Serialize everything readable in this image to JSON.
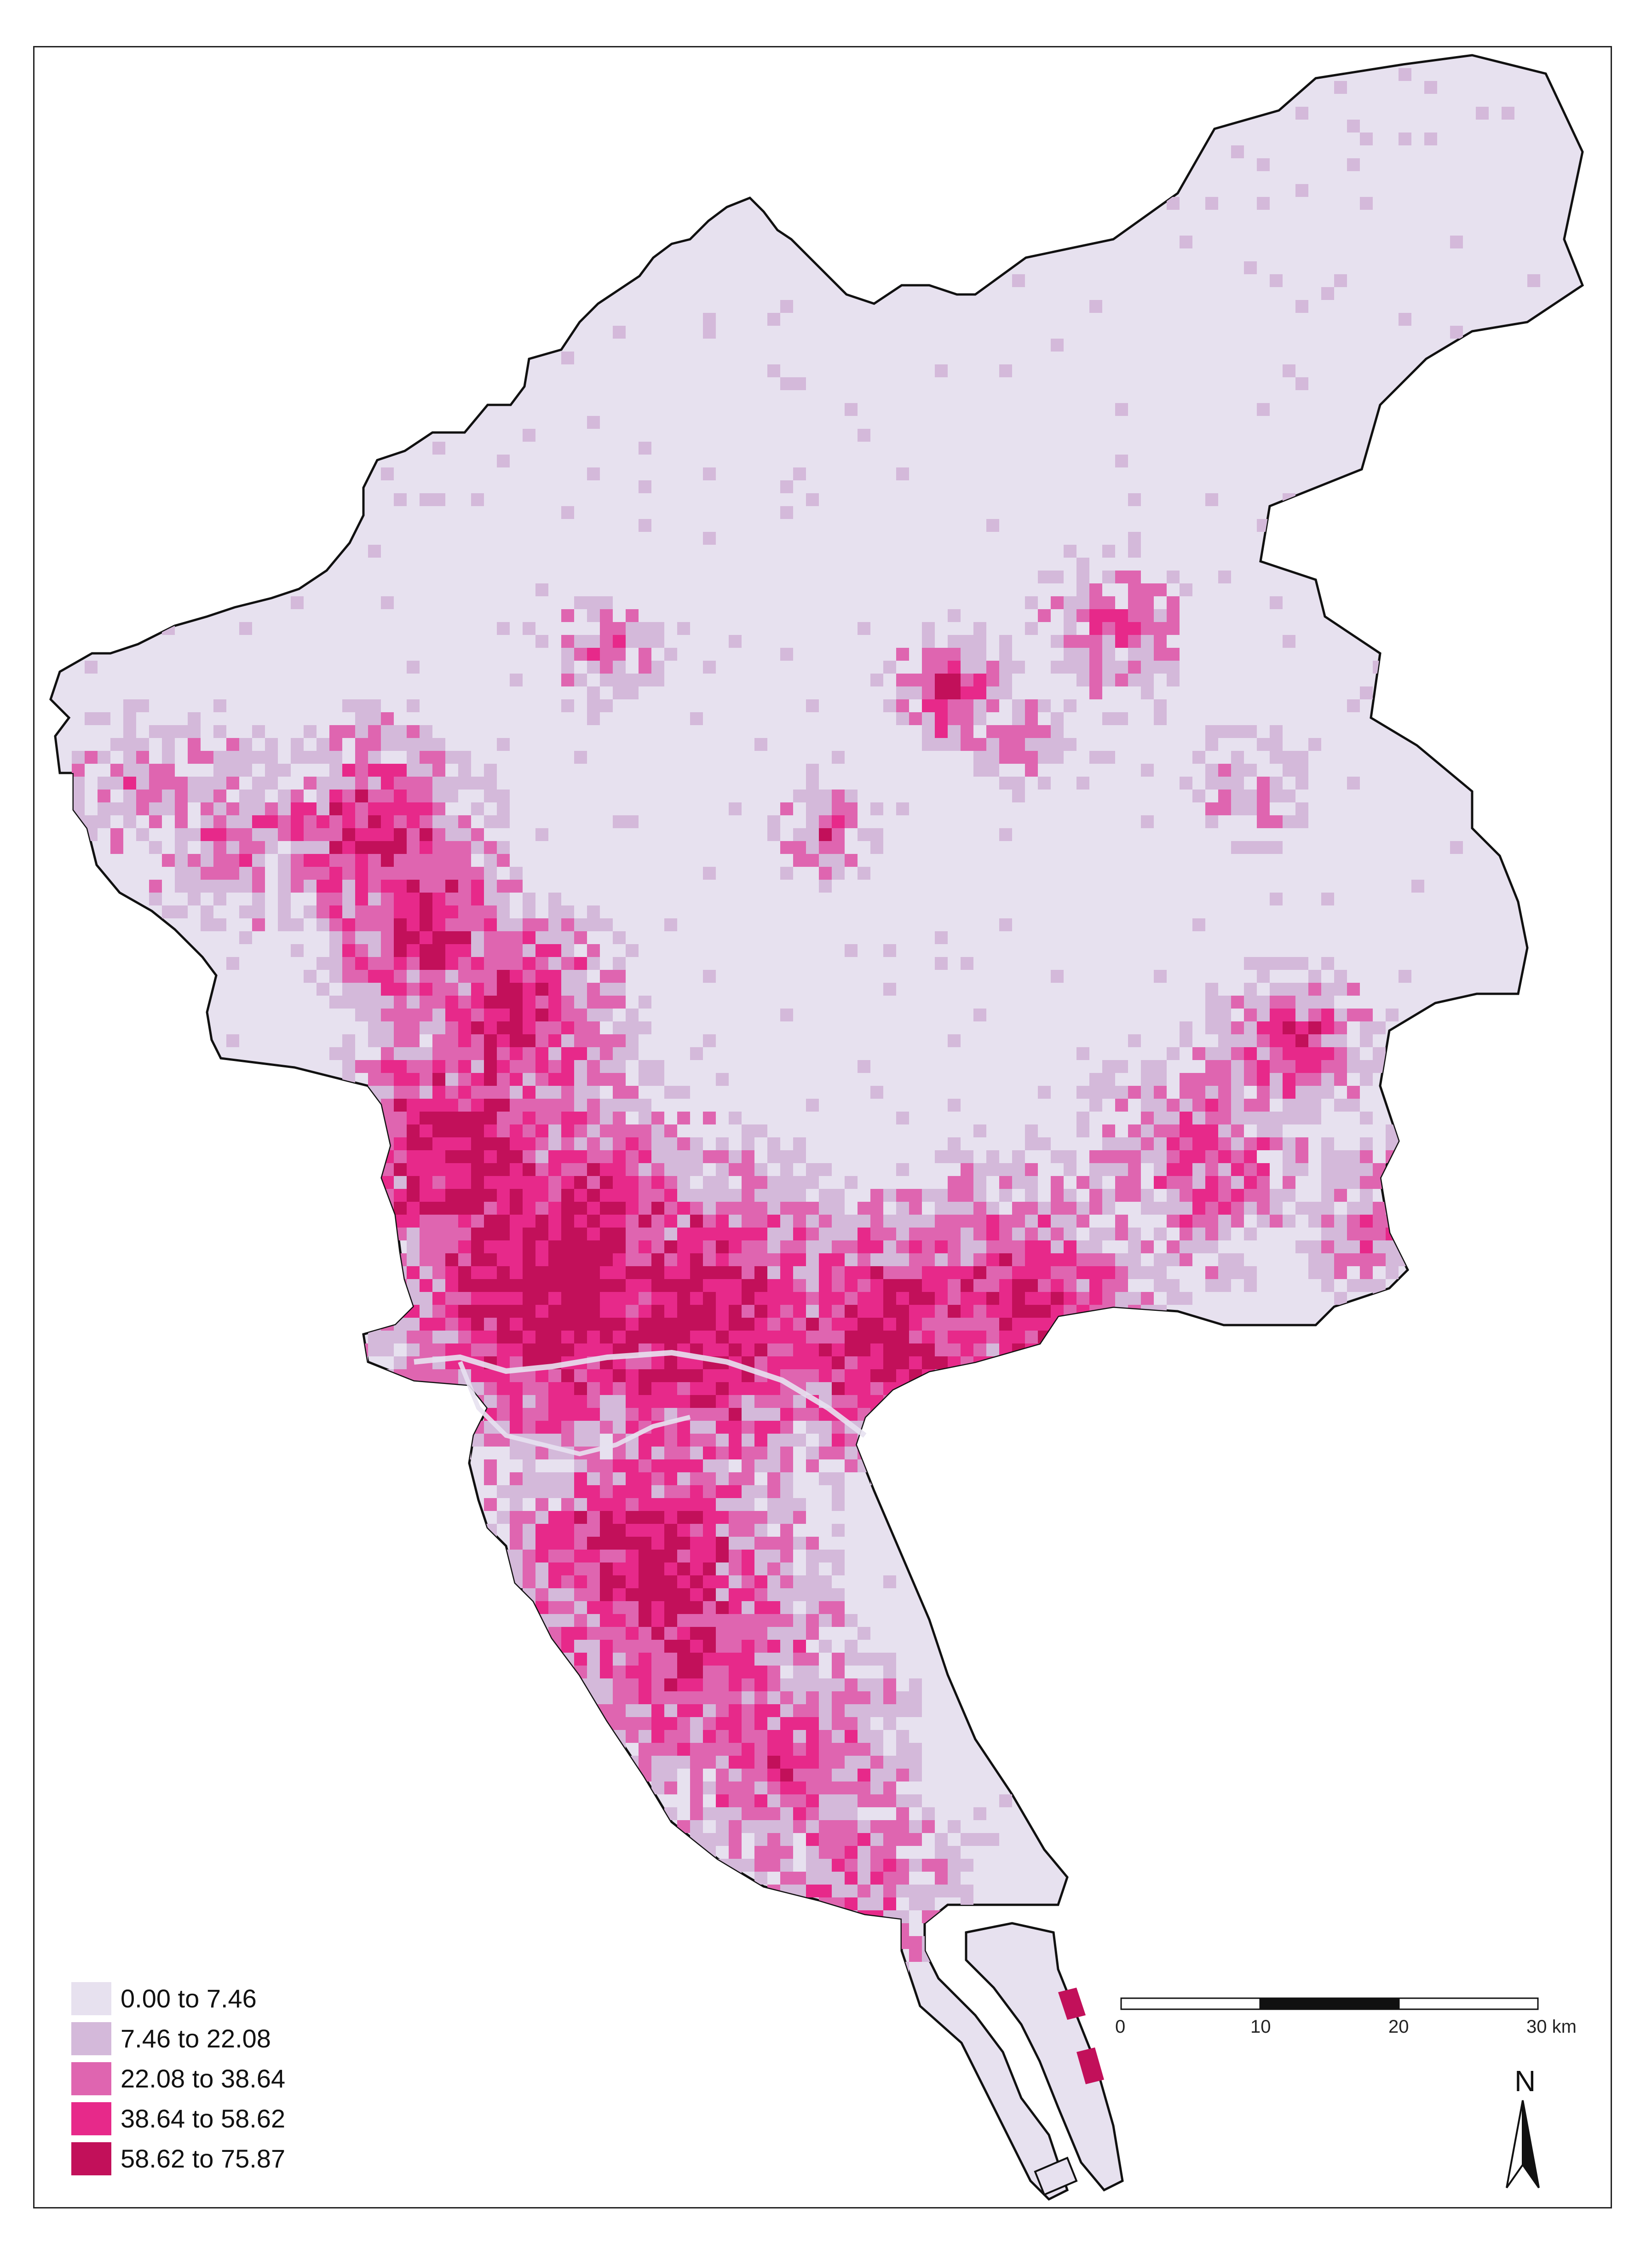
{
  "map": {
    "colors": {
      "background_land": "#e7e1ef",
      "class1": "#e7e1ef",
      "class2": "#d4b9da",
      "class3": "#df65b0",
      "class4": "#e7298a",
      "class5": "#c2105a",
      "outline": "#111111"
    }
  },
  "legend": {
    "items": [
      {
        "label": "0.00 to 7.46",
        "color": "#e7e1ef"
      },
      {
        "label": "7.46 to 22.08",
        "color": "#d4b9da"
      },
      {
        "label": "22.08 to 38.64",
        "color": "#df65b0"
      },
      {
        "label": "38.64 to 58.62",
        "color": "#e7298a"
      },
      {
        "label": "58.62 to 75.87",
        "color": "#c2105a"
      }
    ]
  },
  "scale_bar": {
    "ticks": [
      "0",
      "10",
      "20",
      "30 km"
    ]
  },
  "north_arrow": {
    "label": "N",
    "icon": "north-arrow-icon"
  }
}
